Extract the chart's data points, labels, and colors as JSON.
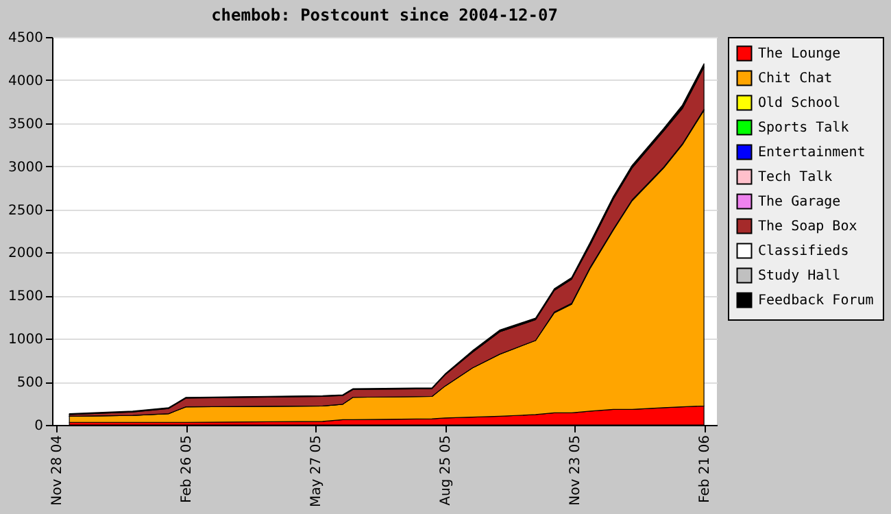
{
  "chart_data": {
    "type": "area",
    "title": "chembob: Postcount since 2004-12-07",
    "stacked": true,
    "legend": "right",
    "grid": "y",
    "x": [
      "2004-12-07",
      "2005-01-20",
      "2005-02-14",
      "2005-02-26",
      "2005-06-01",
      "2005-06-15",
      "2005-06-22",
      "2005-08-16",
      "2005-08-25",
      "2005-09-13",
      "2005-10-02",
      "2005-10-27",
      "2005-11-09",
      "2005-11-21",
      "2005-12-04",
      "2005-12-20",
      "2006-01-02",
      "2006-01-24",
      "2006-02-06",
      "2006-02-21"
    ],
    "xlim": [
      "2004-11-25",
      "2006-03-02"
    ],
    "xticks": [
      {
        "value": "2004-11-28",
        "label": "Nov 28 04"
      },
      {
        "value": "2005-02-26",
        "label": "Feb 26 05"
      },
      {
        "value": "2005-05-27",
        "label": "May 27 05"
      },
      {
        "value": "2005-08-25",
        "label": "Aug 25 05"
      },
      {
        "value": "2005-11-23",
        "label": "Nov 23 05"
      },
      {
        "value": "2006-02-21",
        "label": "Feb 21 06"
      }
    ],
    "ylim": [
      0,
      4500
    ],
    "yticks": [
      0,
      500,
      1000,
      1500,
      2000,
      2500,
      3000,
      3500,
      4000,
      4500
    ],
    "series": [
      {
        "name": "The Lounge",
        "color": "#ff0000",
        "values": [
          30,
          30,
          30,
          30,
          40,
          60,
          60,
          70,
          80,
          90,
          100,
          120,
          140,
          140,
          160,
          180,
          180,
          200,
          210,
          220
        ]
      },
      {
        "name": "Chit Chat",
        "color": "#ffa500",
        "values": [
          70,
          80,
          100,
          180,
          180,
          180,
          260,
          260,
          370,
          570,
          720,
          860,
          1160,
          1260,
          1660,
          2080,
          2420,
          2780,
          3040,
          3430
        ]
      },
      {
        "name": "Old School",
        "color": "#ffff00",
        "values": [
          null,
          null,
          null,
          null,
          null,
          null,
          null,
          null,
          null,
          null,
          null,
          null,
          null,
          null,
          null,
          null,
          null,
          null,
          null,
          null
        ]
      },
      {
        "name": "Sports Talk",
        "color": "#00ff00",
        "values": [
          null,
          null,
          null,
          null,
          null,
          null,
          null,
          null,
          null,
          null,
          null,
          null,
          null,
          null,
          null,
          null,
          null,
          null,
          null,
          null
        ]
      },
      {
        "name": "Entertainment",
        "color": "#0000ff",
        "values": [
          0,
          0,
          0,
          0,
          0,
          0,
          0,
          0,
          0,
          0,
          0,
          0,
          10,
          10,
          10,
          10,
          10,
          10,
          10,
          10
        ]
      },
      {
        "name": "Tech Talk",
        "color": "#ffc0cb",
        "values": [
          null,
          null,
          null,
          null,
          null,
          null,
          null,
          null,
          null,
          null,
          null,
          null,
          null,
          null,
          null,
          null,
          null,
          null,
          null,
          null
        ]
      },
      {
        "name": "The Garage",
        "color": "#ee82ee",
        "values": [
          null,
          null,
          null,
          null,
          null,
          null,
          null,
          null,
          null,
          null,
          null,
          null,
          null,
          null,
          null,
          null,
          null,
          null,
          null,
          null
        ]
      },
      {
        "name": "The Soap Box",
        "color": "#a52a2a",
        "values": [
          20,
          40,
          60,
          100,
          110,
          100,
          90,
          90,
          130,
          180,
          260,
          240,
          250,
          280,
          260,
          350,
          370,
          420,
          410,
          490
        ]
      },
      {
        "name": "Classifieds",
        "color": "#ffffff",
        "values": [
          null,
          null,
          null,
          null,
          null,
          null,
          null,
          null,
          null,
          null,
          null,
          null,
          null,
          null,
          null,
          null,
          null,
          null,
          null,
          null
        ]
      },
      {
        "name": "Study Hall",
        "color": "#c0c0c0",
        "values": [
          null,
          null,
          null,
          null,
          null,
          null,
          null,
          null,
          null,
          null,
          null,
          null,
          null,
          null,
          null,
          null,
          null,
          null,
          null,
          null
        ]
      },
      {
        "name": "Feedback Forum",
        "color": "#000000",
        "values": [
          10,
          10,
          10,
          10,
          10,
          10,
          10,
          10,
          10,
          20,
          20,
          20,
          20,
          20,
          30,
          30,
          30,
          30,
          40,
          40
        ]
      }
    ]
  }
}
